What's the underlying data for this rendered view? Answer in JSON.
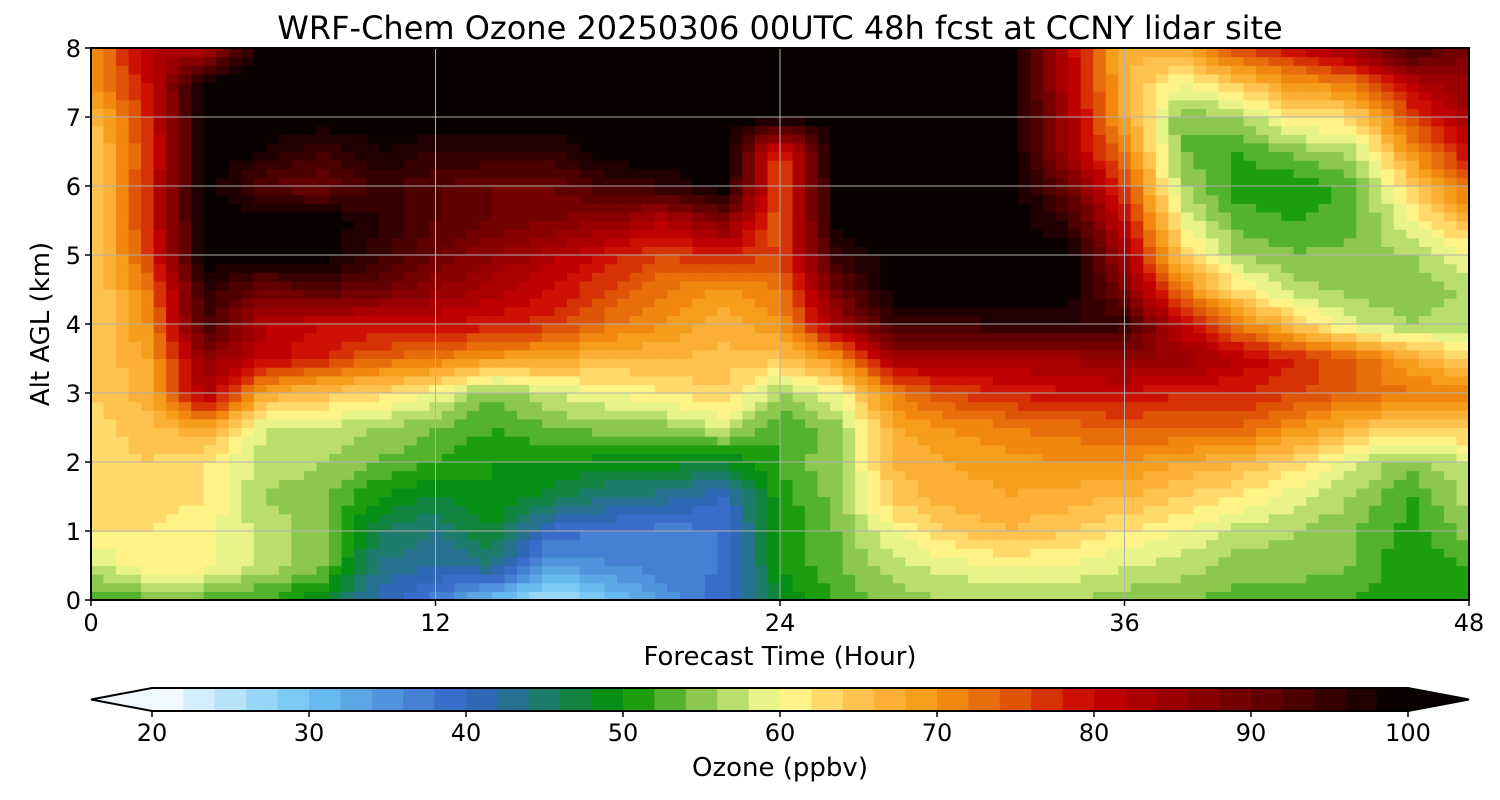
{
  "chart_data": {
    "type": "heatmap",
    "title": "WRF-Chem Ozone  20250306 00UTC 48h fcst at CCNY lidar site",
    "xlabel": "Forecast Time (Hour)",
    "ylabel": "Alt AGL (km)",
    "xlim": [
      0,
      48
    ],
    "ylim": [
      0,
      8
    ],
    "x_ticks": [
      0,
      12,
      24,
      36,
      48
    ],
    "y_ticks": [
      0,
      1,
      2,
      3,
      4,
      5,
      6,
      7,
      8
    ],
    "grid": true,
    "colorbar": {
      "label": "Ozone  (ppbv)",
      "min": 20,
      "max": 100,
      "ticks": [
        20,
        30,
        40,
        50,
        60,
        70,
        80,
        90,
        100
      ],
      "extend": "both",
      "orientation": "horizontal",
      "color_stops": [
        {
          "v": 20,
          "c": "#ffffff"
        },
        {
          "v": 30,
          "c": "#6cc4f4"
        },
        {
          "v": 40,
          "c": "#3463c6"
        },
        {
          "v": 45,
          "c": "#1c7b6a"
        },
        {
          "v": 50,
          "c": "#009400"
        },
        {
          "v": 55,
          "c": "#8cc84c"
        },
        {
          "v": 60,
          "c": "#ffff96"
        },
        {
          "v": 65,
          "c": "#ffc24e"
        },
        {
          "v": 70,
          "c": "#f59410"
        },
        {
          "v": 75,
          "c": "#e05408"
        },
        {
          "v": 80,
          "c": "#c80000"
        },
        {
          "v": 90,
          "c": "#6c0000"
        },
        {
          "v": 100,
          "c": "#000000"
        }
      ]
    },
    "altitudes_km": [
      0,
      0.5,
      1,
      1.5,
      2,
      2.5,
      3,
      3.5,
      4,
      4.5,
      5,
      5.5,
      6,
      6.5,
      7,
      7.5,
      8
    ],
    "times_h": [
      0,
      2,
      4,
      6,
      8,
      10,
      12,
      14,
      16,
      18,
      20,
      22,
      24,
      26,
      28,
      30,
      32,
      34,
      36,
      38,
      40,
      42,
      44,
      46,
      48
    ],
    "ozone_ppbv": [
      [
        53,
        53,
        53,
        52,
        48,
        41,
        37,
        30,
        25,
        30,
        35,
        40,
        48,
        52,
        55,
        56,
        56,
        56,
        55,
        54,
        53,
        53,
        52,
        50,
        50
      ],
      [
        57,
        62,
        61,
        57,
        55,
        44,
        42,
        44,
        34,
        36,
        37,
        38,
        50,
        54,
        57,
        59,
        60,
        60,
        58,
        57,
        55,
        55,
        54,
        50,
        52
      ],
      [
        62,
        62,
        61,
        57,
        55,
        46,
        44,
        48,
        39,
        38,
        37,
        38,
        50,
        54,
        60,
        64,
        66,
        64,
        62,
        60,
        57,
        56,
        54,
        51,
        55
      ],
      [
        62,
        63,
        62,
        56,
        55,
        50,
        48,
        50,
        47,
        44,
        43,
        40,
        51,
        55,
        65,
        67,
        68,
        67,
        66,
        64,
        62,
        59,
        56,
        52,
        57
      ],
      [
        63,
        64,
        62,
        57,
        56,
        54,
        52,
        50,
        50,
        49,
        49,
        48,
        52,
        56,
        66,
        68,
        69,
        70,
        70,
        68,
        66,
        63,
        58,
        55,
        58
      ],
      [
        63,
        65,
        68,
        58,
        58,
        56,
        54,
        52,
        54,
        55,
        55,
        58,
        52,
        55,
        68,
        70,
        72,
        73,
        74,
        74,
        74,
        70,
        66,
        63,
        65
      ],
      [
        64,
        67,
        84,
        68,
        65,
        63,
        60,
        54,
        58,
        60,
        62,
        64,
        56,
        60,
        72,
        76,
        78,
        80,
        80,
        78,
        78,
        76,
        74,
        72,
        72
      ],
      [
        64,
        68,
        86,
        81,
        78,
        74,
        72,
        69,
        68,
        66,
        66,
        65,
        65,
        70,
        84,
        84,
        84,
        84,
        86,
        86,
        82,
        78,
        74,
        68,
        63
      ],
      [
        64,
        70,
        94,
        82,
        80,
        80,
        80,
        79,
        77,
        73,
        70,
        67,
        70,
        84,
        95,
        95,
        96,
        96,
        95,
        80,
        72,
        64,
        58,
        56,
        57
      ],
      [
        63,
        72,
        96,
        90,
        92,
        90,
        86,
        83,
        80,
        76,
        72,
        69,
        72,
        90,
        100,
        100,
        100,
        100,
        88,
        72,
        62,
        57,
        55,
        55,
        56
      ],
      [
        63,
        76,
        100,
        100,
        100,
        95,
        90,
        86,
        83,
        79,
        76,
        78,
        76,
        95,
        100,
        100,
        100,
        100,
        84,
        64,
        56,
        54,
        55,
        56,
        60
      ],
      [
        63,
        78,
        100,
        100,
        100,
        96,
        92,
        90,
        88,
        86,
        82,
        88,
        74,
        100,
        100,
        100,
        100,
        95,
        80,
        60,
        53,
        52,
        53,
        60,
        66
      ],
      [
        63,
        78,
        100,
        92,
        90,
        95,
        92,
        90,
        90,
        94,
        96,
        100,
        74,
        100,
        100,
        100,
        100,
        90,
        76,
        56,
        51,
        50,
        53,
        64,
        74
      ],
      [
        63,
        77,
        100,
        98,
        94,
        98,
        96,
        96,
        96,
        100,
        100,
        100,
        76,
        100,
        100,
        100,
        100,
        84,
        72,
        54,
        52,
        55,
        57,
        70,
        80
      ],
      [
        65,
        78,
        100,
        100,
        100,
        100,
        100,
        100,
        100,
        100,
        100,
        100,
        100,
        100,
        100,
        100,
        100,
        84,
        68,
        54,
        56,
        62,
        63,
        76,
        84
      ],
      [
        70,
        80,
        100,
        100,
        100,
        100,
        100,
        100,
        100,
        100,
        100,
        100,
        100,
        100,
        100,
        100,
        100,
        82,
        67,
        60,
        65,
        70,
        72,
        82,
        86
      ],
      [
        70,
        82,
        82,
        100,
        100,
        100,
        100,
        100,
        100,
        100,
        100,
        100,
        100,
        100,
        100,
        100,
        100,
        82,
        66,
        68,
        76,
        80,
        86,
        95,
        88
      ]
    ]
  }
}
